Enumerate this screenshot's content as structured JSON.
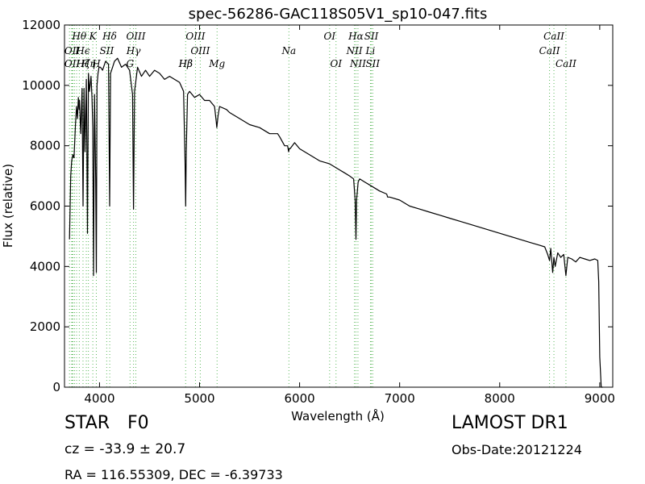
{
  "chart_data": {
    "type": "line",
    "title": "spec-56286-GAC118S05V1_sp10-047.fits",
    "xlabel": "Wavelength (Å)",
    "ylabel": "Flux (relative)",
    "xlim": [
      3650,
      9130
    ],
    "ylim": [
      0,
      12000
    ],
    "xticks": [
      4000,
      5000,
      6000,
      7000,
      8000,
      9000
    ],
    "yticks": [
      0,
      2000,
      4000,
      6000,
      8000,
      10000,
      12000
    ],
    "line_color": "#000000",
    "marker_line_color": "#5cb85c",
    "series": [
      {
        "x": [
          3700,
          3712,
          3722,
          3733,
          3745,
          3760,
          3770,
          3780,
          3789,
          3797,
          3800,
          3812,
          3826,
          3835,
          3845,
          3855,
          3868,
          3880,
          3889,
          3900,
          3915,
          3925,
          3933,
          3940,
          3950,
          3962,
          3968,
          3975,
          3985,
          3995,
          4010,
          4030,
          4060,
          4090,
          4101,
          4110,
          4130,
          4150,
          4180,
          4220,
          4260,
          4300,
          4330,
          4340,
          4350,
          4380,
          4420,
          4460,
          4500,
          4550,
          4600,
          4650,
          4700,
          4750,
          4800,
          4840,
          4855,
          4861,
          4867,
          4880,
          4900,
          4950,
          5000,
          5050,
          5100,
          5150,
          5167,
          5172,
          5185,
          5200,
          5270,
          5300,
          5400,
          5500,
          5600,
          5700,
          5780,
          5800,
          5850,
          5880,
          5890,
          5896,
          5905,
          5950,
          6000,
          6100,
          6200,
          6300,
          6400,
          6450,
          6500,
          6540,
          6555,
          6563,
          6570,
          6585,
          6600,
          6650,
          6700,
          6800,
          6870,
          6880,
          6900,
          7000,
          7100,
          7200,
          7300,
          7400,
          7500,
          7600,
          7700,
          7800,
          7900,
          8000,
          8100,
          8200,
          8300,
          8400,
          8450,
          8480,
          8498,
          8510,
          8530,
          8542,
          8555,
          8580,
          8610,
          8640,
          8662,
          8680,
          8720,
          8760,
          8800,
          8850,
          8900,
          8950,
          8980,
          8990,
          9000,
          9015,
          9030
        ],
        "y": [
          4900,
          7000,
          7500,
          7700,
          7600,
          8700,
          9300,
          8900,
          9600,
          9200,
          9500,
          8400,
          9900,
          6000,
          9900,
          7800,
          10200,
          5100,
          10400,
          9800,
          10300,
          9600,
          8600,
          3700,
          9700,
          6900,
          3800,
          10000,
          10400,
          10600,
          10600,
          10500,
          10800,
          10700,
          6000,
          10400,
          10600,
          10800,
          10900,
          10600,
          10700,
          10500,
          9700,
          5900,
          9800,
          10600,
          10300,
          10500,
          10300,
          10500,
          10400,
          10200,
          10300,
          10200,
          10100,
          9800,
          7500,
          6000,
          7800,
          9700,
          9800,
          9600,
          9700,
          9500,
          9500,
          9300,
          8800,
          8600,
          9000,
          9300,
          9200,
          9100,
          8900,
          8700,
          8600,
          8400,
          8400,
          8300,
          8000,
          8000,
          7800,
          7900,
          7900,
          8100,
          7900,
          7700,
          7500,
          7400,
          7200,
          7100,
          7000,
          6900,
          6200,
          4900,
          6200,
          6800,
          6900,
          6800,
          6700,
          6500,
          6400,
          6300,
          6300,
          6200,
          6000,
          5900,
          5800,
          5700,
          5600,
          5500,
          5400,
          5300,
          5200,
          5100,
          5000,
          4900,
          4800,
          4700,
          4650,
          4400,
          4200,
          4600,
          3800,
          4300,
          4000,
          4450,
          4300,
          4400,
          3700,
          4300,
          4250,
          4150,
          4300,
          4250,
          4200,
          4250,
          4200,
          3500,
          1000,
          0,
          0
        ]
      }
    ],
    "line_markers": [
      {
        "label": "Hθ",
        "x": 3797,
        "row": 0
      },
      {
        "label": "K",
        "x": 3933,
        "row": 0
      },
      {
        "label": "Hδ",
        "x": 4101,
        "row": 0
      },
      {
        "label": "OIII",
        "x": 4363,
        "row": 0
      },
      {
        "label": "OIII",
        "x": 4959,
        "row": 0
      },
      {
        "label": "Na",
        "x": 5893,
        "row": 1
      },
      {
        "label": "OI",
        "x": 6300,
        "row": 0
      },
      {
        "label": "Hα",
        "x": 6563,
        "row": 0
      },
      {
        "label": "SII",
        "x": 6717,
        "row": 0
      },
      {
        "label": "CaII",
        "x": 8542,
        "row": 0
      },
      {
        "label": "OII",
        "x": 3727,
        "row": 1
      },
      {
        "label": "Hϵ",
        "x": 3835,
        "row": 1
      },
      {
        "label": "SII",
        "x": 4072,
        "row": 1
      },
      {
        "label": "Hγ",
        "x": 4340,
        "row": 1
      },
      {
        "label": "OIII",
        "x": 5007,
        "row": 1
      },
      {
        "label": "Mg",
        "x": 5175,
        "row": 2
      },
      {
        "label": "NII",
        "x": 6548,
        "row": 1
      },
      {
        "label": "Li",
        "x": 6708,
        "row": 1
      },
      {
        "label": "CaII",
        "x": 8498,
        "row": 1
      },
      {
        "label": "OII",
        "x": 3727,
        "row": 2
      },
      {
        "label": "Hη",
        "x": 3889,
        "row": 2
      },
      {
        "label": "H",
        "x": 3968,
        "row": 2
      },
      {
        "label": "Hζ",
        "x": 3835,
        "row": 2
      },
      {
        "label": "Hβ",
        "x": 4861,
        "row": 2
      },
      {
        "label": "G",
        "x": 4305,
        "row": 2
      },
      {
        "label": "OI",
        "x": 6364,
        "row": 2
      },
      {
        "label": "NII",
        "x": 6583,
        "row": 2
      },
      {
        "label": "SII",
        "x": 6731,
        "row": 2
      },
      {
        "label": "CaII",
        "x": 8662,
        "row": 2
      },
      {
        "label": "I",
        "x": 3778,
        "row": 1
      },
      {
        "label": "Hβ",
        "x": 4861,
        "row": 2
      }
    ],
    "marker_lines_x": [
      3700,
      3721,
      3727,
      3734,
      3750,
      3771,
      3798,
      3835,
      3868,
      3889,
      3933,
      3968,
      4072,
      4102,
      4305,
      4340,
      4363,
      4861,
      4959,
      5007,
      5175,
      5893,
      6300,
      6364,
      6548,
      6563,
      6583,
      6708,
      6717,
      6731,
      8498,
      8542,
      8662
    ]
  },
  "info": {
    "object_type": "STAR",
    "subclass": "F0",
    "survey": "LAMOST DR1",
    "redshift": "cz = -33.9 ± 20.7",
    "obs_date": "Obs-Date:20121224",
    "coords": "RA = 116.55309, DEC = -6.39733"
  }
}
